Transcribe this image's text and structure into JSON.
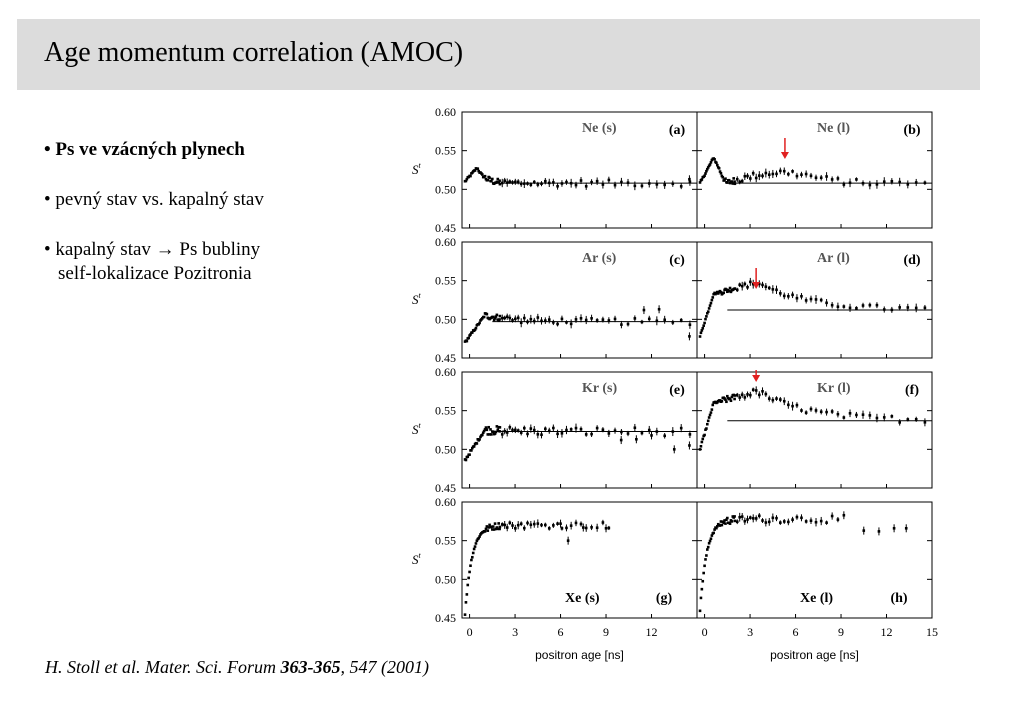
{
  "slide": {
    "title": "Age momentum correlation (AMOC)",
    "bullets": [
      {
        "text": "• Ps ve vzácných plynech"
      },
      {
        "text": "• pevný stav vs. kapalný stav"
      },
      {
        "text": "• kapalný stav → Ps bubliny",
        "line2": "self-lokalizace Pozitronia"
      }
    ],
    "citation": {
      "prefix": "H. Stoll et al. Mater. Sci. Forum ",
      "volume": "363-365",
      "suffix": ", 547 (2001)"
    }
  },
  "colors": {
    "marker": "#000000",
    "arrow": "#e02020",
    "frame": "#000000"
  },
  "chart_data": [
    {
      "type": "scatter",
      "panel": "(a)",
      "label": "Ne (s)",
      "ylabel": "Sᵗ",
      "yticks": [
        "0.60",
        "0.55",
        "0.50",
        "0.45"
      ],
      "ylim": [
        0.45,
        0.6
      ],
      "xlim": [
        -0.5,
        15
      ],
      "fit_level": 0.508,
      "peak": {
        "x": 0.5,
        "y": 0.528
      },
      "rise_from": 0.51,
      "decay_to": 0.508,
      "scatter": 0.006,
      "tail_points": [
        [
          14.5,
          0.513
        ]
      ]
    },
    {
      "type": "scatter",
      "panel": "(b)",
      "label": "Ne (l)",
      "ylim": [
        0.45,
        0.6
      ],
      "xlim": [
        -0.5,
        15
      ],
      "fit_level": 0.508,
      "peak": {
        "x": 0.6,
        "y": 0.541
      },
      "dip": {
        "x": 1.5,
        "y": 0.505
      },
      "hump": {
        "x": 5.0,
        "y": 0.522
      },
      "scatter": 0.006,
      "arrow_x": 5.3
    },
    {
      "type": "scatter",
      "panel": "(c)",
      "label": "Ar (s)",
      "yticks": [
        "0.60",
        "0.55",
        "0.50",
        "0.45"
      ],
      "ylim": [
        0.45,
        0.6
      ],
      "xlim": [
        -0.5,
        15
      ],
      "fit_level": 0.497,
      "start": 0.47,
      "rise_end": {
        "x": 1.0,
        "y": 0.505
      },
      "scatter": 0.006,
      "tail_points": [
        [
          11.5,
          0.512
        ],
        [
          12.5,
          0.513
        ],
        [
          14.5,
          0.478
        ]
      ]
    },
    {
      "type": "scatter",
      "panel": "(d)",
      "label": "Ar (l)",
      "ylim": [
        0.45,
        0.6
      ],
      "xlim": [
        -0.5,
        15
      ],
      "fit_level": 0.512,
      "start": 0.478,
      "peak": {
        "x": 3.5,
        "y": 0.548
      },
      "scatter": 0.005,
      "arrow_x": 3.4
    },
    {
      "type": "scatter",
      "panel": "(e)",
      "label": "Kr (s)",
      "yticks": [
        "0.60",
        "0.55",
        "0.50",
        "0.45"
      ],
      "ylim": [
        0.45,
        0.6
      ],
      "xlim": [
        -0.5,
        15
      ],
      "fit_level": 0.523,
      "start": 0.486,
      "rise_end": {
        "x": 1.0,
        "y": 0.525
      },
      "scatter": 0.008,
      "tail_points": [
        [
          10.0,
          0.512
        ],
        [
          11.0,
          0.513
        ],
        [
          12.0,
          0.518
        ],
        [
          13.5,
          0.5
        ],
        [
          14.5,
          0.505
        ]
      ]
    },
    {
      "type": "scatter",
      "panel": "(f)",
      "label": "Kr (l)",
      "ylim": [
        0.45,
        0.6
      ],
      "xlim": [
        -0.5,
        15
      ],
      "fit_level": 0.537,
      "start": 0.5,
      "peak": {
        "x": 3.5,
        "y": 0.575
      },
      "scatter": 0.006,
      "arrow_x": 3.4
    },
    {
      "type": "scatter",
      "panel": "(g)",
      "label": "Xe (s)",
      "yticks": [
        "0.60",
        "0.55",
        "0.50",
        "0.45"
      ],
      "ylim": [
        0.45,
        0.6
      ],
      "xlim": [
        -0.5,
        15
      ],
      "fit_level": null,
      "start": 0.455,
      "plateau": 0.57,
      "rise_end_x": 1.0,
      "scatter": 0.006,
      "tail_points": [
        [
          6.0,
          0.572
        ],
        [
          6.5,
          0.55
        ],
        [
          7.5,
          0.567
        ],
        [
          9.0,
          0.566
        ]
      ],
      "xlabel": "positron age [ns]",
      "xticks": [
        "0",
        "3",
        "6",
        "9",
        "12"
      ]
    },
    {
      "type": "scatter",
      "panel": "(h)",
      "label": "Xe (l)",
      "ylim": [
        0.45,
        0.6
      ],
      "xlim": [
        -0.5,
        15
      ],
      "fit_level": null,
      "start": 0.46,
      "plateau": 0.578,
      "rise_end_x": 1.0,
      "scatter": 0.007,
      "tail_points": [
        [
          10.5,
          0.563
        ],
        [
          11.5,
          0.562
        ],
        [
          12.5,
          0.566
        ],
        [
          13.3,
          0.566
        ]
      ],
      "xlabel": "positron age [ns]",
      "xticks": [
        "0",
        "3",
        "6",
        "9",
        "12",
        "15"
      ]
    }
  ]
}
